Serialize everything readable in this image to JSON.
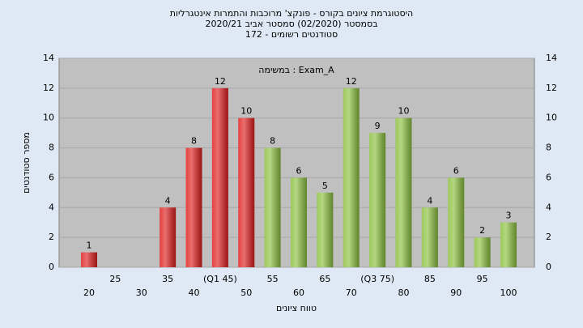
{
  "chart_data": {
    "type": "bar",
    "title": "היסטוגרמת ציונים בקורס - פונקצ' מרוכבות והתמרות אינטגרליות",
    "subtitle": "בסמסטר (02/2020) סמסטר אביב 2020/21",
    "subtitle2": "סטודנטים רשומים - 172",
    "annotation": "במשימה : Exam_A",
    "x_label": "טווח ציונים",
    "y_label": "מספר סטודנטים",
    "categories": [
      "20",
      "25",
      "30",
      "35",
      "40",
      "(Q1 45)",
      "50",
      "55",
      "60",
      "65",
      "70",
      "(Q3 75)",
      "80",
      "85",
      "90",
      "95",
      "100"
    ],
    "values": [
      1,
      0,
      0,
      4,
      8,
      12,
      10,
      8,
      6,
      5,
      12,
      9,
      10,
      4,
      6,
      2,
      3
    ],
    "colors": [
      "#e02020",
      "#e02020",
      "#e02020",
      "#e02020",
      "#e02020",
      "#e02020",
      "#e02020",
      "#8cc040",
      "#8cc040",
      "#8cc040",
      "#8cc040",
      "#8cc040",
      "#8cc040",
      "#8cc040",
      "#8cc040",
      "#8cc040",
      "#8cc040"
    ],
    "ylim": [
      0,
      14
    ],
    "yticks": [
      0,
      2,
      4,
      6,
      8,
      10,
      12,
      14
    ],
    "grid": true
  }
}
